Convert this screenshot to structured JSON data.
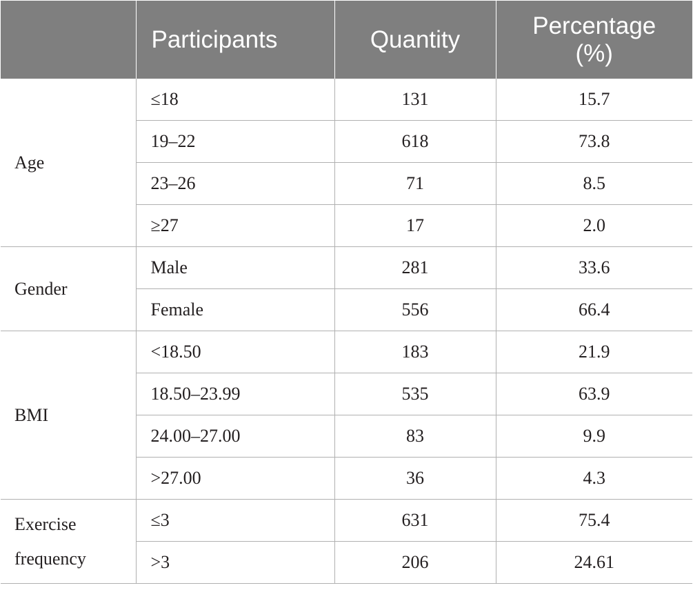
{
  "table": {
    "headers": [
      "",
      "Participants",
      "Quantity",
      "Percentage (%)"
    ],
    "groups": [
      {
        "name": "Age",
        "rows": [
          {
            "label": "≤18",
            "quantity": "131",
            "percentage": "15.7"
          },
          {
            "label": "19–22",
            "quantity": "618",
            "percentage": "73.8"
          },
          {
            "label": "23–26",
            "quantity": "71",
            "percentage": "8.5"
          },
          {
            "label": "≥27",
            "quantity": "17",
            "percentage": "2.0"
          }
        ]
      },
      {
        "name": "Gender",
        "rows": [
          {
            "label": "Male",
            "quantity": "281",
            "percentage": "33.6"
          },
          {
            "label": "Female",
            "quantity": "556",
            "percentage": "66.4"
          }
        ]
      },
      {
        "name": "BMI",
        "rows": [
          {
            "label": "<18.50",
            "quantity": "183",
            "percentage": "21.9"
          },
          {
            "label": "18.50–23.99",
            "quantity": "535",
            "percentage": "63.9"
          },
          {
            "label": "24.00–27.00",
            "quantity": "83",
            "percentage": "9.9"
          },
          {
            "label": ">27.00",
            "quantity": "36",
            "percentage": "4.3"
          }
        ]
      },
      {
        "name": "Exercise frequency",
        "rows": [
          {
            "label": "≤3",
            "quantity": "631",
            "percentage": "75.4"
          },
          {
            "label": ">3",
            "quantity": "206",
            "percentage": "24.61"
          }
        ]
      }
    ]
  }
}
